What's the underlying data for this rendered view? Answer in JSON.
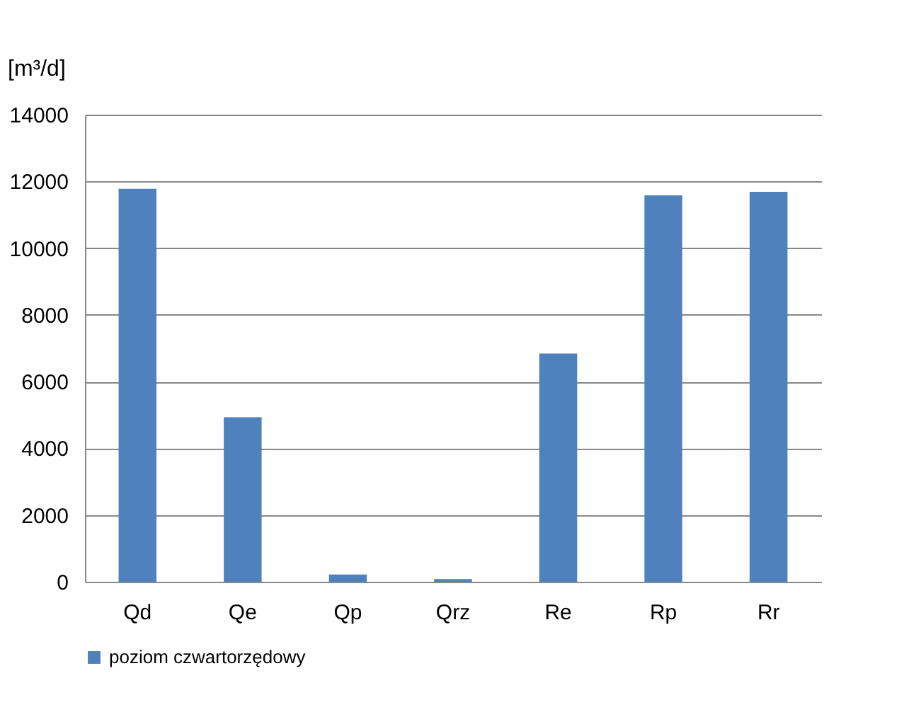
{
  "chart_data": {
    "type": "bar",
    "ylabel": "[m³/d]",
    "categories": [
      "Qd",
      "Qe",
      "Qp",
      "Qrz",
      "Re",
      "Rp",
      "Rr"
    ],
    "series": [
      {
        "name": "poziom czwartorzędowy",
        "color": "#4f81bd",
        "values": [
          11780,
          4930,
          220,
          80,
          6840,
          11580,
          11690
        ]
      }
    ],
    "ylim": [
      0,
      14000
    ],
    "yticks": [
      0,
      2000,
      4000,
      6000,
      8000,
      10000,
      12000,
      14000
    ],
    "grid": "y",
    "legend": "bottom"
  }
}
